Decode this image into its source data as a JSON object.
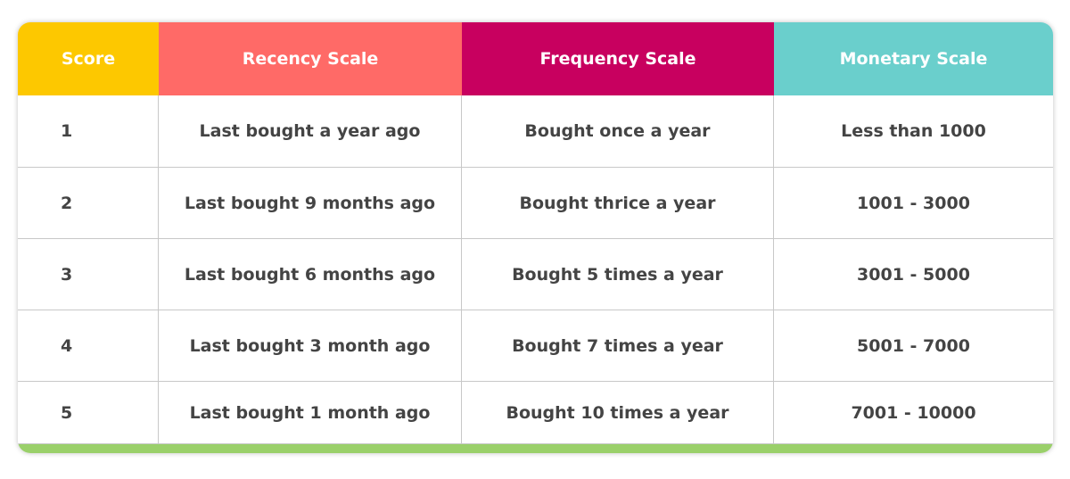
{
  "table": {
    "headers": [
      "Score",
      "Recency Scale",
      "Frequency Scale",
      "Monetary Scale"
    ],
    "rows": [
      [
        "1",
        "Last bought a year ago",
        "Bought once a year",
        "Less than 1000"
      ],
      [
        "2",
        "Last bought 9 months ago",
        "Bought thrice a year",
        "1001 - 3000"
      ],
      [
        "3",
        "Last bought 6 months ago",
        "Bought 5 times a year",
        "3001 - 5000"
      ],
      [
        "4",
        "Last bought 3 month ago",
        "Bought 7 times a year",
        "5001 - 7000"
      ],
      [
        "5",
        "Last bought 1 month ago",
        "Bought 10 times a year",
        "7001 - 10000"
      ]
    ]
  }
}
